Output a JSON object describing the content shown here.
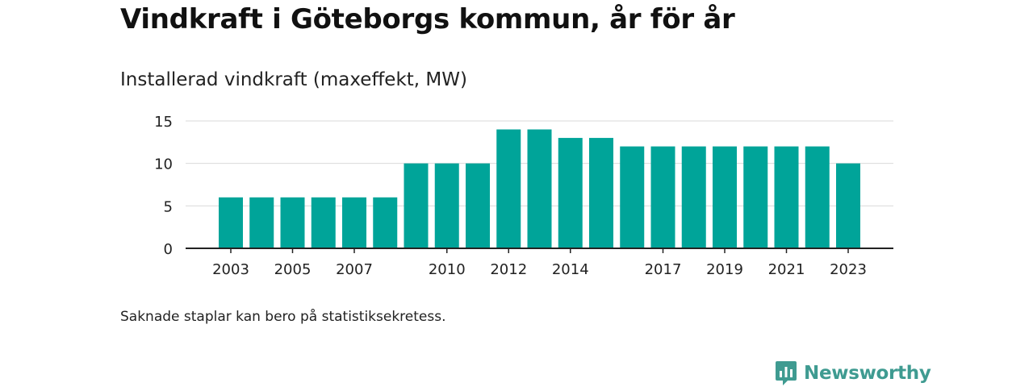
{
  "title": "Vindkraft i Göteborgs kommun, år för år",
  "subtitle": "Installerad vindkraft (maxeffekt, MW)",
  "note": "Saknade staplar kan bero på statistiksekretess.",
  "brand": {
    "name": "Newsworthy",
    "color": "#3f9b91"
  },
  "chart_data": {
    "type": "bar",
    "categories": [
      "2003",
      "2004",
      "2005",
      "2006",
      "2007",
      "2008",
      "2009",
      "2010",
      "2011",
      "2012",
      "2013",
      "2014",
      "2015",
      "2016",
      "2017",
      "2018",
      "2019",
      "2020",
      "2021",
      "2022",
      "2023"
    ],
    "values": [
      6,
      6,
      6,
      6,
      6,
      6,
      10,
      10,
      10,
      14,
      14,
      13,
      13,
      12,
      12,
      12,
      12,
      12,
      12,
      12,
      10
    ],
    "x_tick_labels": [
      "2003",
      "2005",
      "2007",
      "2010",
      "2012",
      "2014",
      "2017",
      "2019",
      "2021",
      "2023"
    ],
    "y_ticks": [
      0,
      5,
      10,
      15
    ],
    "ylim": [
      0,
      15
    ],
    "grid": true,
    "bar_color": "#00a499"
  }
}
